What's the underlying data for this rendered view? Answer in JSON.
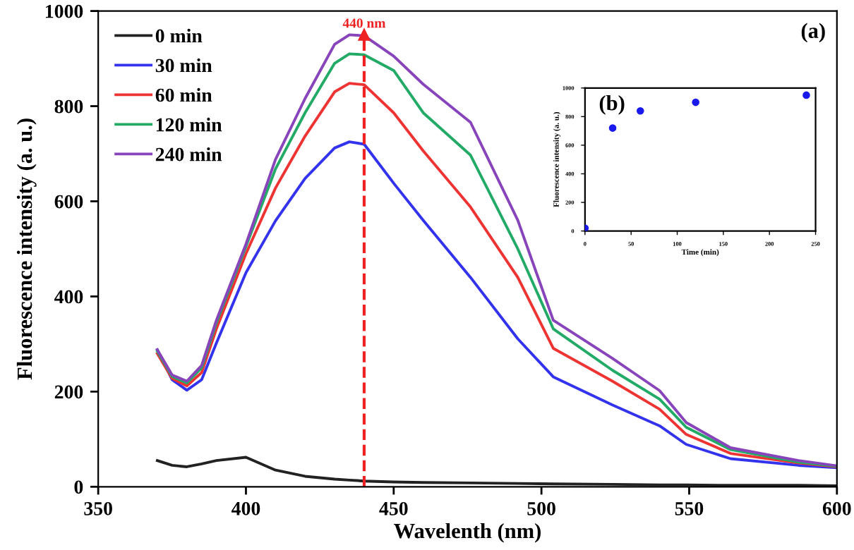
{
  "chart_data": [
    {
      "type": "line",
      "xlabel": "Wavelenth (nm)",
      "ylabel": "Fluorescence intensity (a. u.)",
      "x": [
        370,
        375,
        380,
        385,
        390,
        400,
        410,
        420,
        430,
        435,
        440,
        450,
        460,
        476,
        492,
        504,
        524,
        540,
        549,
        564,
        587,
        600
      ],
      "series": [
        {
          "name": "0 min",
          "color": "#222222",
          "values": [
            55,
            45,
            42,
            48,
            55,
            62,
            35,
            22,
            16,
            14,
            12,
            10,
            9,
            8,
            7,
            6,
            5,
            4,
            4,
            3,
            3,
            2
          ]
        },
        {
          "name": "30 min",
          "color": "#3333ee",
          "values": [
            288,
            225,
            203,
            225,
            302,
            450,
            559,
            648,
            712,
            725,
            720,
            638,
            560,
            440,
            311,
            231,
            172,
            128,
            89,
            59,
            45,
            40
          ]
        },
        {
          "name": "60 min",
          "color": "#ee3333",
          "values": [
            280,
            228,
            212,
            240,
            332,
            490,
            628,
            737,
            830,
            848,
            845,
            786,
            706,
            588,
            440,
            291,
            222,
            163,
            110,
            70,
            50,
            42
          ]
        },
        {
          "name": "120 min",
          "color": "#22aa66",
          "values": [
            285,
            232,
            218,
            250,
            345,
            505,
            668,
            786,
            890,
            910,
            908,
            875,
            786,
            697,
            500,
            332,
            245,
            184,
            125,
            78,
            52,
            43
          ]
        },
        {
          "name": "240 min",
          "color": "#8844bb",
          "values": [
            288,
            235,
            222,
            255,
            350,
            510,
            688,
            816,
            930,
            950,
            948,
            905,
            846,
            766,
            560,
            350,
            270,
            202,
            135,
            82,
            55,
            44
          ]
        }
      ],
      "xlim": [
        350,
        600
      ],
      "ylim": [
        0,
        1000
      ],
      "xticks": [
        350,
        400,
        450,
        500,
        550,
        600
      ],
      "yticks": [
        0,
        200,
        400,
        600,
        800,
        1000
      ],
      "ref_lines": [
        {
          "axis": "x",
          "value": 440,
          "label": "440 nm",
          "color": "#ee2222",
          "line_style": "dashed"
        }
      ],
      "annotations": [
        "(a)"
      ],
      "legend": "top left",
      "grid": false,
      "marker": "none",
      "line_style": "solid"
    },
    {
      "type": "scatter",
      "xlabel": "Time (min)",
      "ylabel": "Fluorescence intensity (a. u.)",
      "x": [
        0,
        30,
        60,
        120,
        240
      ],
      "series": [
        {
          "color": "#1a1aee",
          "values": [
            20,
            720,
            840,
            900,
            950
          ]
        }
      ],
      "xlim": [
        0,
        250
      ],
      "ylim": [
        0,
        1000
      ],
      "xticks": [
        0,
        50,
        100,
        150,
        200,
        250
      ],
      "yticks": [
        0,
        200,
        400,
        600,
        800,
        1000
      ],
      "annotations": [
        "(b)"
      ],
      "marker": "circle",
      "grid": false
    }
  ]
}
